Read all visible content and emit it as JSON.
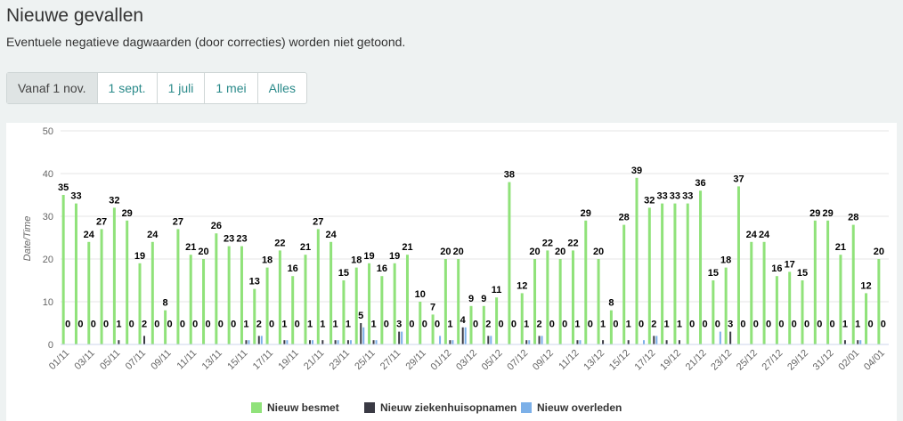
{
  "header": {
    "title": "Nieuwe gevallen",
    "subtitle": "Eventuele negatieve dagwaarden (door correcties) worden niet getoond."
  },
  "buttons": [
    "Vanaf 1 nov.",
    "1 sept.",
    "1 juli",
    "1 mei",
    "Alles"
  ],
  "chart_data": {
    "type": "bar",
    "ylabel": "Date/Time",
    "categories": [
      "01/11",
      null,
      "03/11",
      null,
      "05/11",
      null,
      "07/11",
      null,
      "09/11",
      null,
      "11/11",
      null,
      "13/11",
      null,
      "15/11",
      null,
      "17/11",
      null,
      "19/11",
      null,
      "21/11",
      null,
      "23/11",
      null,
      "25/11",
      null,
      "27/11",
      null,
      "29/11",
      null,
      "01/12",
      null,
      "03/12",
      null,
      "05/12",
      null,
      "07/12",
      null,
      "09/12",
      null,
      "11/12",
      null,
      "13/12",
      null,
      "15/12",
      null,
      "17/12",
      null,
      "19/12",
      null,
      "21/12",
      null,
      "23/12",
      null,
      "25/12",
      null,
      "27/12",
      null,
      "29/12",
      null,
      "31/12",
      null,
      "02/01",
      null,
      "04/01"
    ],
    "series": [
      {
        "name": "Nieuw besmet",
        "color": "#90e27a",
        "labels": true,
        "values": [
          35,
          33,
          24,
          27,
          32,
          29,
          19,
          24,
          8,
          27,
          21,
          20,
          26,
          23,
          23,
          13,
          18,
          22,
          16,
          21,
          27,
          24,
          15,
          18,
          19,
          16,
          19,
          21,
          10,
          7,
          20,
          20,
          9,
          9,
          11,
          38,
          12,
          20,
          22,
          20,
          22,
          29,
          20,
          8,
          28,
          39,
          32,
          33,
          33,
          33,
          36,
          15,
          18,
          37,
          24,
          24,
          16,
          17,
          15,
          29,
          29,
          21,
          28,
          12,
          20
        ]
      },
      {
        "name": "Nieuw ziekenhuisopnamen",
        "color": "#3a3a44",
        "labels": true,
        "values": [
          0,
          0,
          0,
          0,
          1,
          0,
          2,
          0,
          0,
          0,
          0,
          0,
          0,
          0,
          1,
          2,
          0,
          1,
          0,
          1,
          1,
          1,
          1,
          5,
          1,
          0,
          3,
          0,
          0,
          0,
          1,
          4,
          0,
          2,
          0,
          0,
          1,
          2,
          0,
          0,
          1,
          0,
          1,
          0,
          1,
          0,
          2,
          1,
          1,
          0,
          0,
          0,
          3,
          0,
          0,
          0,
          0,
          0,
          0,
          0,
          0,
          1,
          1,
          0,
          0
        ]
      },
      {
        "name": "Nieuw overleden",
        "color": "#7cb0e8",
        "labels": false,
        "values": [
          0,
          0,
          0,
          0,
          0,
          0,
          0,
          0,
          0,
          0,
          0,
          0,
          0,
          0,
          1,
          2,
          0,
          1,
          0,
          1,
          0,
          1,
          1,
          4,
          1,
          0,
          3,
          0,
          0,
          2,
          1,
          4,
          0,
          2,
          0,
          0,
          1,
          2,
          0,
          0,
          1,
          0,
          0,
          0,
          0,
          1,
          2,
          0,
          0,
          0,
          0,
          3,
          0,
          0,
          0,
          0,
          0,
          0,
          0,
          0,
          0,
          0,
          1,
          0,
          0
        ]
      }
    ],
    "ylim": [
      0,
      50
    ],
    "yticks": [
      0,
      10,
      20,
      30,
      40,
      50
    ],
    "grid": true
  }
}
